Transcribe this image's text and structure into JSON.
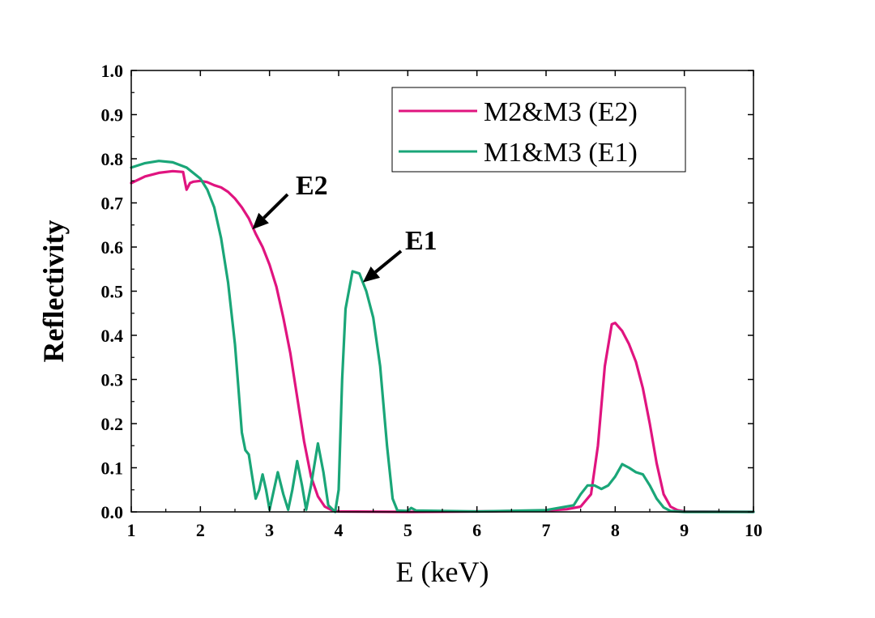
{
  "chart_data": {
    "type": "line",
    "title": "",
    "xlabel": "E (keV)",
    "ylabel": "Reflectivity",
    "xlim": [
      1,
      10
    ],
    "ylim": [
      0,
      1.0
    ],
    "x_ticks": [
      "1",
      "2",
      "3",
      "4",
      "5",
      "6",
      "7",
      "8",
      "9",
      "10"
    ],
    "y_ticks": [
      "0.0",
      "0.1",
      "0.2",
      "0.3",
      "0.4",
      "0.5",
      "0.6",
      "0.7",
      "0.8",
      "0.9",
      "1.0"
    ],
    "grid": false,
    "legend_position": "top-right",
    "series": [
      {
        "name": "M2&M3 (E2)",
        "color": "#e0147f",
        "points": [
          [
            1.0,
            0.745
          ],
          [
            1.2,
            0.76
          ],
          [
            1.4,
            0.768
          ],
          [
            1.6,
            0.772
          ],
          [
            1.75,
            0.77
          ],
          [
            1.78,
            0.745
          ],
          [
            1.8,
            0.73
          ],
          [
            1.85,
            0.745
          ],
          [
            1.9,
            0.748
          ],
          [
            2.0,
            0.75
          ],
          [
            2.1,
            0.747
          ],
          [
            2.2,
            0.74
          ],
          [
            2.3,
            0.735
          ],
          [
            2.4,
            0.725
          ],
          [
            2.5,
            0.71
          ],
          [
            2.6,
            0.69
          ],
          [
            2.7,
            0.665
          ],
          [
            2.8,
            0.63
          ],
          [
            2.9,
            0.6
          ],
          [
            3.0,
            0.56
          ],
          [
            3.1,
            0.51
          ],
          [
            3.2,
            0.44
          ],
          [
            3.3,
            0.36
          ],
          [
            3.4,
            0.26
          ],
          [
            3.5,
            0.16
          ],
          [
            3.6,
            0.08
          ],
          [
            3.7,
            0.035
          ],
          [
            3.8,
            0.012
          ],
          [
            3.9,
            0.004
          ],
          [
            4.0,
            0.001
          ],
          [
            5.0,
            0.0
          ],
          [
            6.0,
            0.001
          ],
          [
            7.0,
            0.003
          ],
          [
            7.3,
            0.006
          ],
          [
            7.5,
            0.012
          ],
          [
            7.65,
            0.04
          ],
          [
            7.75,
            0.15
          ],
          [
            7.85,
            0.33
          ],
          [
            7.95,
            0.425
          ],
          [
            8.0,
            0.428
          ],
          [
            8.1,
            0.41
          ],
          [
            8.2,
            0.38
          ],
          [
            8.3,
            0.34
          ],
          [
            8.4,
            0.28
          ],
          [
            8.5,
            0.2
          ],
          [
            8.6,
            0.11
          ],
          [
            8.7,
            0.04
          ],
          [
            8.8,
            0.012
          ],
          [
            8.9,
            0.004
          ],
          [
            9.0,
            0.001
          ],
          [
            10.0,
            0.0
          ]
        ]
      },
      {
        "name": "M1&M3 (E1)",
        "color": "#1aa678",
        "points": [
          [
            1.0,
            0.78
          ],
          [
            1.2,
            0.79
          ],
          [
            1.4,
            0.795
          ],
          [
            1.6,
            0.792
          ],
          [
            1.8,
            0.78
          ],
          [
            2.0,
            0.755
          ],
          [
            2.1,
            0.73
          ],
          [
            2.2,
            0.69
          ],
          [
            2.3,
            0.62
          ],
          [
            2.4,
            0.52
          ],
          [
            2.5,
            0.38
          ],
          [
            2.55,
            0.28
          ],
          [
            2.6,
            0.18
          ],
          [
            2.65,
            0.14
          ],
          [
            2.7,
            0.13
          ],
          [
            2.75,
            0.08
          ],
          [
            2.8,
            0.03
          ],
          [
            2.85,
            0.05
          ],
          [
            2.9,
            0.085
          ],
          [
            2.95,
            0.05
          ],
          [
            3.0,
            0.005
          ],
          [
            3.05,
            0.04
          ],
          [
            3.12,
            0.09
          ],
          [
            3.2,
            0.04
          ],
          [
            3.27,
            0.005
          ],
          [
            3.33,
            0.05
          ],
          [
            3.4,
            0.115
          ],
          [
            3.47,
            0.06
          ],
          [
            3.53,
            0.005
          ],
          [
            3.6,
            0.06
          ],
          [
            3.7,
            0.155
          ],
          [
            3.78,
            0.09
          ],
          [
            3.85,
            0.015
          ],
          [
            3.95,
            0.0
          ],
          [
            4.0,
            0.05
          ],
          [
            4.05,
            0.3
          ],
          [
            4.1,
            0.46
          ],
          [
            4.2,
            0.545
          ],
          [
            4.3,
            0.54
          ],
          [
            4.4,
            0.5
          ],
          [
            4.5,
            0.44
          ],
          [
            4.6,
            0.33
          ],
          [
            4.7,
            0.15
          ],
          [
            4.78,
            0.03
          ],
          [
            4.85,
            0.003
          ],
          [
            5.0,
            0.002
          ],
          [
            5.05,
            0.009
          ],
          [
            5.12,
            0.003
          ],
          [
            6.0,
            0.001
          ],
          [
            7.0,
            0.004
          ],
          [
            7.4,
            0.015
          ],
          [
            7.5,
            0.04
          ],
          [
            7.6,
            0.06
          ],
          [
            7.7,
            0.06
          ],
          [
            7.8,
            0.052
          ],
          [
            7.9,
            0.06
          ],
          [
            8.0,
            0.08
          ],
          [
            8.1,
            0.108
          ],
          [
            8.2,
            0.1
          ],
          [
            8.3,
            0.09
          ],
          [
            8.4,
            0.085
          ],
          [
            8.5,
            0.06
          ],
          [
            8.6,
            0.03
          ],
          [
            8.7,
            0.01
          ],
          [
            8.8,
            0.002
          ],
          [
            9.0,
            0.0
          ],
          [
            10.0,
            0.0
          ]
        ]
      }
    ],
    "annotations": [
      {
        "text": "E2",
        "target": [
          2.75,
          0.64
        ]
      },
      {
        "text": "E1",
        "target": [
          4.35,
          0.52
        ]
      }
    ]
  }
}
